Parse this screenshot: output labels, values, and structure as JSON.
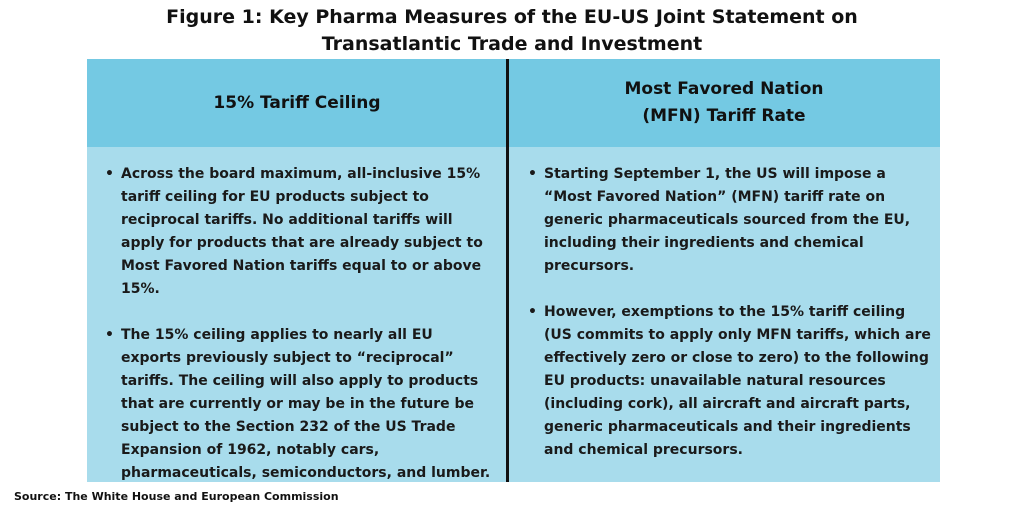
{
  "title": {
    "line1": "Figure 1: Key Pharma Measures of the EU-US Joint Statement on",
    "line2": "Transatlantic Trade and Investment"
  },
  "columns": [
    {
      "header_lines": [
        "15% Tariff Ceiling"
      ],
      "bullets": [
        "Across the board maximum, all-inclusive 15% tariff ceiling for EU products subject to reciprocal tariffs. No additional tariffs will apply for products that are already subject to Most Favored Nation tariffs equal to or above 15%.",
        "The 15% ceiling applies to nearly all EU exports previously subject to “reciprocal” tariffs. The ceiling will also apply to products that are currently or may be in the future be subject to the Section 232 of the US Trade Expansion of 1962, notably cars, pharmaceuticals, semiconductors, and lumber."
      ]
    },
    {
      "header_lines": [
        "Most Favored Nation",
        "(MFN) Tariff Rate"
      ],
      "bullets": [
        "Starting September 1, the US will impose a “Most Favored Nation” (MFN) tariff rate on generic pharmaceuticals sourced from the EU, including their ingredients and chemical precursors.",
        "However, exemptions to the 15% tariff ceiling (US commits to apply only MFN tariffs, which are effectively zero or close to zero) to the following EU products: unavailable natural resources (including cork), all aircraft and aircraft parts, generic pharmaceuticals and their ingredients and chemical precursors."
      ]
    }
  ],
  "source": "Source: The White House and European Commission",
  "colors": {
    "header_bg": "#74c9e3",
    "body_bg": "#a8dcec",
    "divider": "#111111"
  }
}
